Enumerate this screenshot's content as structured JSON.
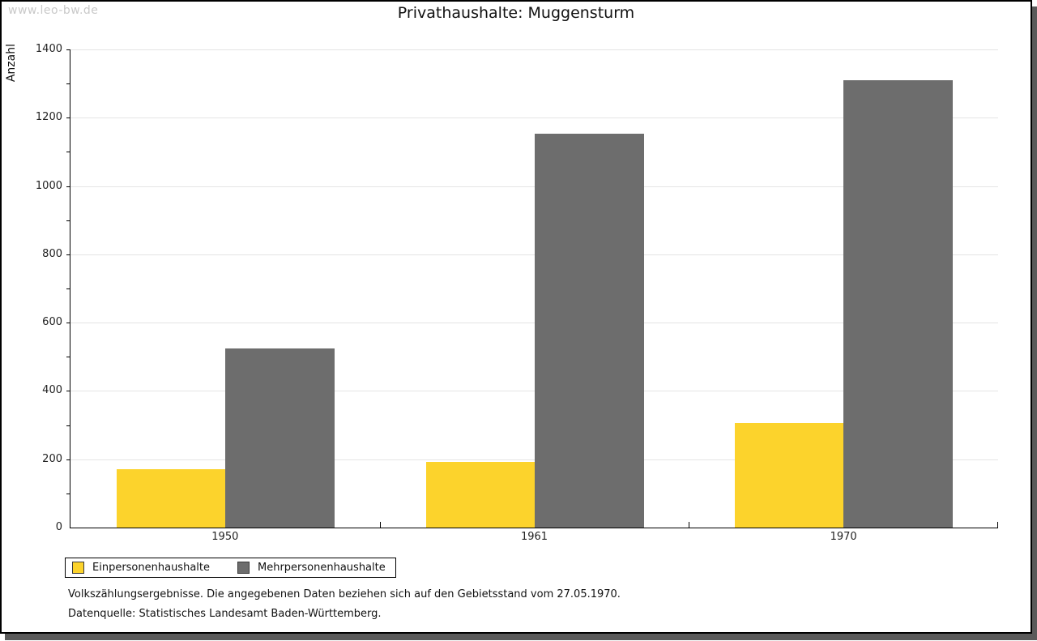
{
  "watermark": "www.leo-bw.de",
  "header": {
    "title": "Privathaushalte: Muggensturm"
  },
  "chart_data": {
    "type": "bar",
    "title": "Privathaushalte: Muggensturm",
    "xlabel": "",
    "ylabel": "Anzahl",
    "categories": [
      "1950",
      "1961",
      "1970"
    ],
    "series": [
      {
        "name": "Einpersonenhaushalte",
        "color": "#fcd32c",
        "values": [
          171,
          192,
          305
        ]
      },
      {
        "name": "Mehrpersonenhaushalte",
        "color": "#6d6d6d",
        "values": [
          525,
          1153,
          1310
        ]
      }
    ],
    "ylim": [
      0,
      1400
    ],
    "ytick_step": 200,
    "yminor_step": 100,
    "grid": true,
    "legend_position": "bottom-left"
  },
  "footer": {
    "line1": "Volkszählungsergebnisse. Die angegebenen Daten beziehen sich auf den Gebietsstand vom 27.05.1970.",
    "line2": "Datenquelle: Statistisches Landesamt Baden-Württemberg."
  },
  "colors": {
    "bar_yellow": "#fcd32c",
    "bar_gray": "#6d6d6d",
    "gridline": "#e4e4e4",
    "watermark": "#c9c9c9",
    "frame_shadow": "#5a5a5a"
  }
}
